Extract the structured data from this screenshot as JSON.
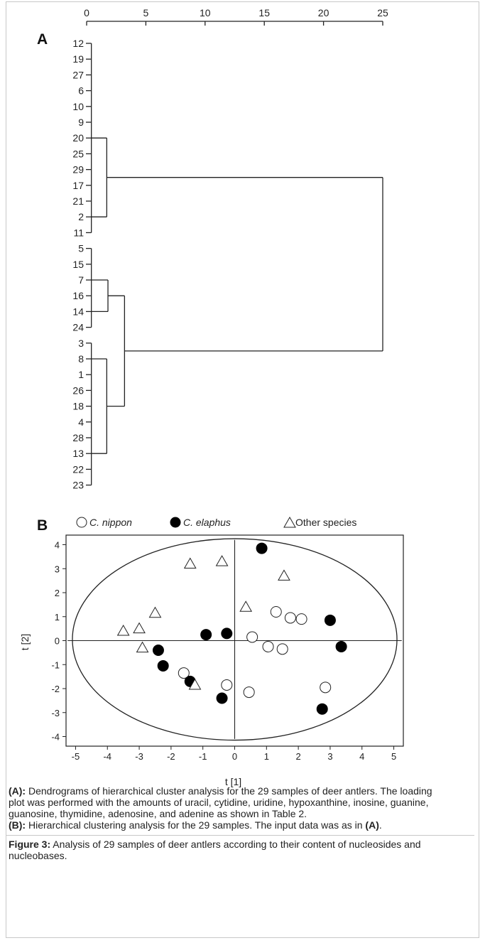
{
  "chart_data": [
    {
      "type": "dendrogram",
      "panel_label": "A",
      "scale_ticks": [
        0,
        5,
        10,
        15,
        20,
        25
      ],
      "leaves": [
        "12",
        "19",
        "27",
        "6",
        "10",
        "9",
        "20",
        "25",
        "29",
        "17",
        "21",
        "2",
        "11",
        "5",
        "15",
        "7",
        "16",
        "14",
        "24",
        "3",
        "8",
        "1",
        "26",
        "18",
        "4",
        "28",
        "13",
        "22",
        "23"
      ]
    },
    {
      "type": "scatter",
      "panel_label": "B",
      "xlabel": "t [1]",
      "ylabel": "t [2]",
      "xlim": [
        -5.3,
        5.3
      ],
      "ylim": [
        -4.4,
        4.4
      ],
      "x_ticks": [
        -5,
        -4,
        -3,
        -2,
        -1,
        0,
        1,
        2,
        3,
        4,
        5
      ],
      "y_ticks": [
        -4,
        -3,
        -2,
        -1,
        0,
        1,
        2,
        3,
        4
      ],
      "legend": [
        {
          "name": "C. nippon",
          "marker": "open-circle",
          "italic": true
        },
        {
          "name": "C. elaphus",
          "marker": "filled-circle",
          "italic": true
        },
        {
          "name": "Other species",
          "marker": "open-triangle",
          "italic": false
        }
      ],
      "series": [
        {
          "name": "C. nippon",
          "points": [
            [
              1.3,
              1.2
            ],
            [
              1.75,
              0.95
            ],
            [
              2.1,
              0.9
            ],
            [
              0.55,
              0.15
            ],
            [
              1.05,
              -0.25
            ],
            [
              1.5,
              -0.35
            ],
            [
              -1.6,
              -1.35
            ],
            [
              -0.25,
              -1.85
            ],
            [
              0.45,
              -2.15
            ],
            [
              2.85,
              -1.95
            ]
          ]
        },
        {
          "name": "C. elaphus",
          "points": [
            [
              0.85,
              3.85
            ],
            [
              3.0,
              0.85
            ],
            [
              3.35,
              -0.25
            ],
            [
              -0.9,
              0.25
            ],
            [
              -0.25,
              0.3
            ],
            [
              -2.4,
              -0.4
            ],
            [
              -2.25,
              -1.05
            ],
            [
              -1.4,
              -1.7
            ],
            [
              -0.4,
              -2.4
            ],
            [
              2.75,
              -2.85
            ]
          ]
        },
        {
          "name": "Other species",
          "points": [
            [
              -1.4,
              3.2
            ],
            [
              -0.4,
              3.3
            ],
            [
              1.55,
              2.7
            ],
            [
              0.35,
              1.4
            ],
            [
              -2.5,
              1.15
            ],
            [
              -3.0,
              0.5
            ],
            [
              -3.5,
              0.4
            ],
            [
              -2.9,
              -0.3
            ],
            [
              -1.25,
              -1.85
            ]
          ]
        }
      ]
    }
  ],
  "caption": {
    "para_a_label": "(A):",
    "para_a_text": " Dendrograms of hierarchical cluster analysis for the 29 samples of deer antlers. The loading plot was performed with the amounts of uracil, cytidine, uridine, hypoxanthine, inosine, guanine, guanosine, thymidine, adenosine, and adenine as shown in Table 2.",
    "para_b_label": "(B):",
    "para_b_text1": " Hierarchical clustering analysis for the 29 samples. The input data was as in ",
    "para_b_ref": "(A)",
    "para_b_end": ".",
    "figure_label": "Figure 3:",
    "figure_text": " Analysis of 29 samples of deer antlers according to their content of nucleosides and nucleobases."
  }
}
